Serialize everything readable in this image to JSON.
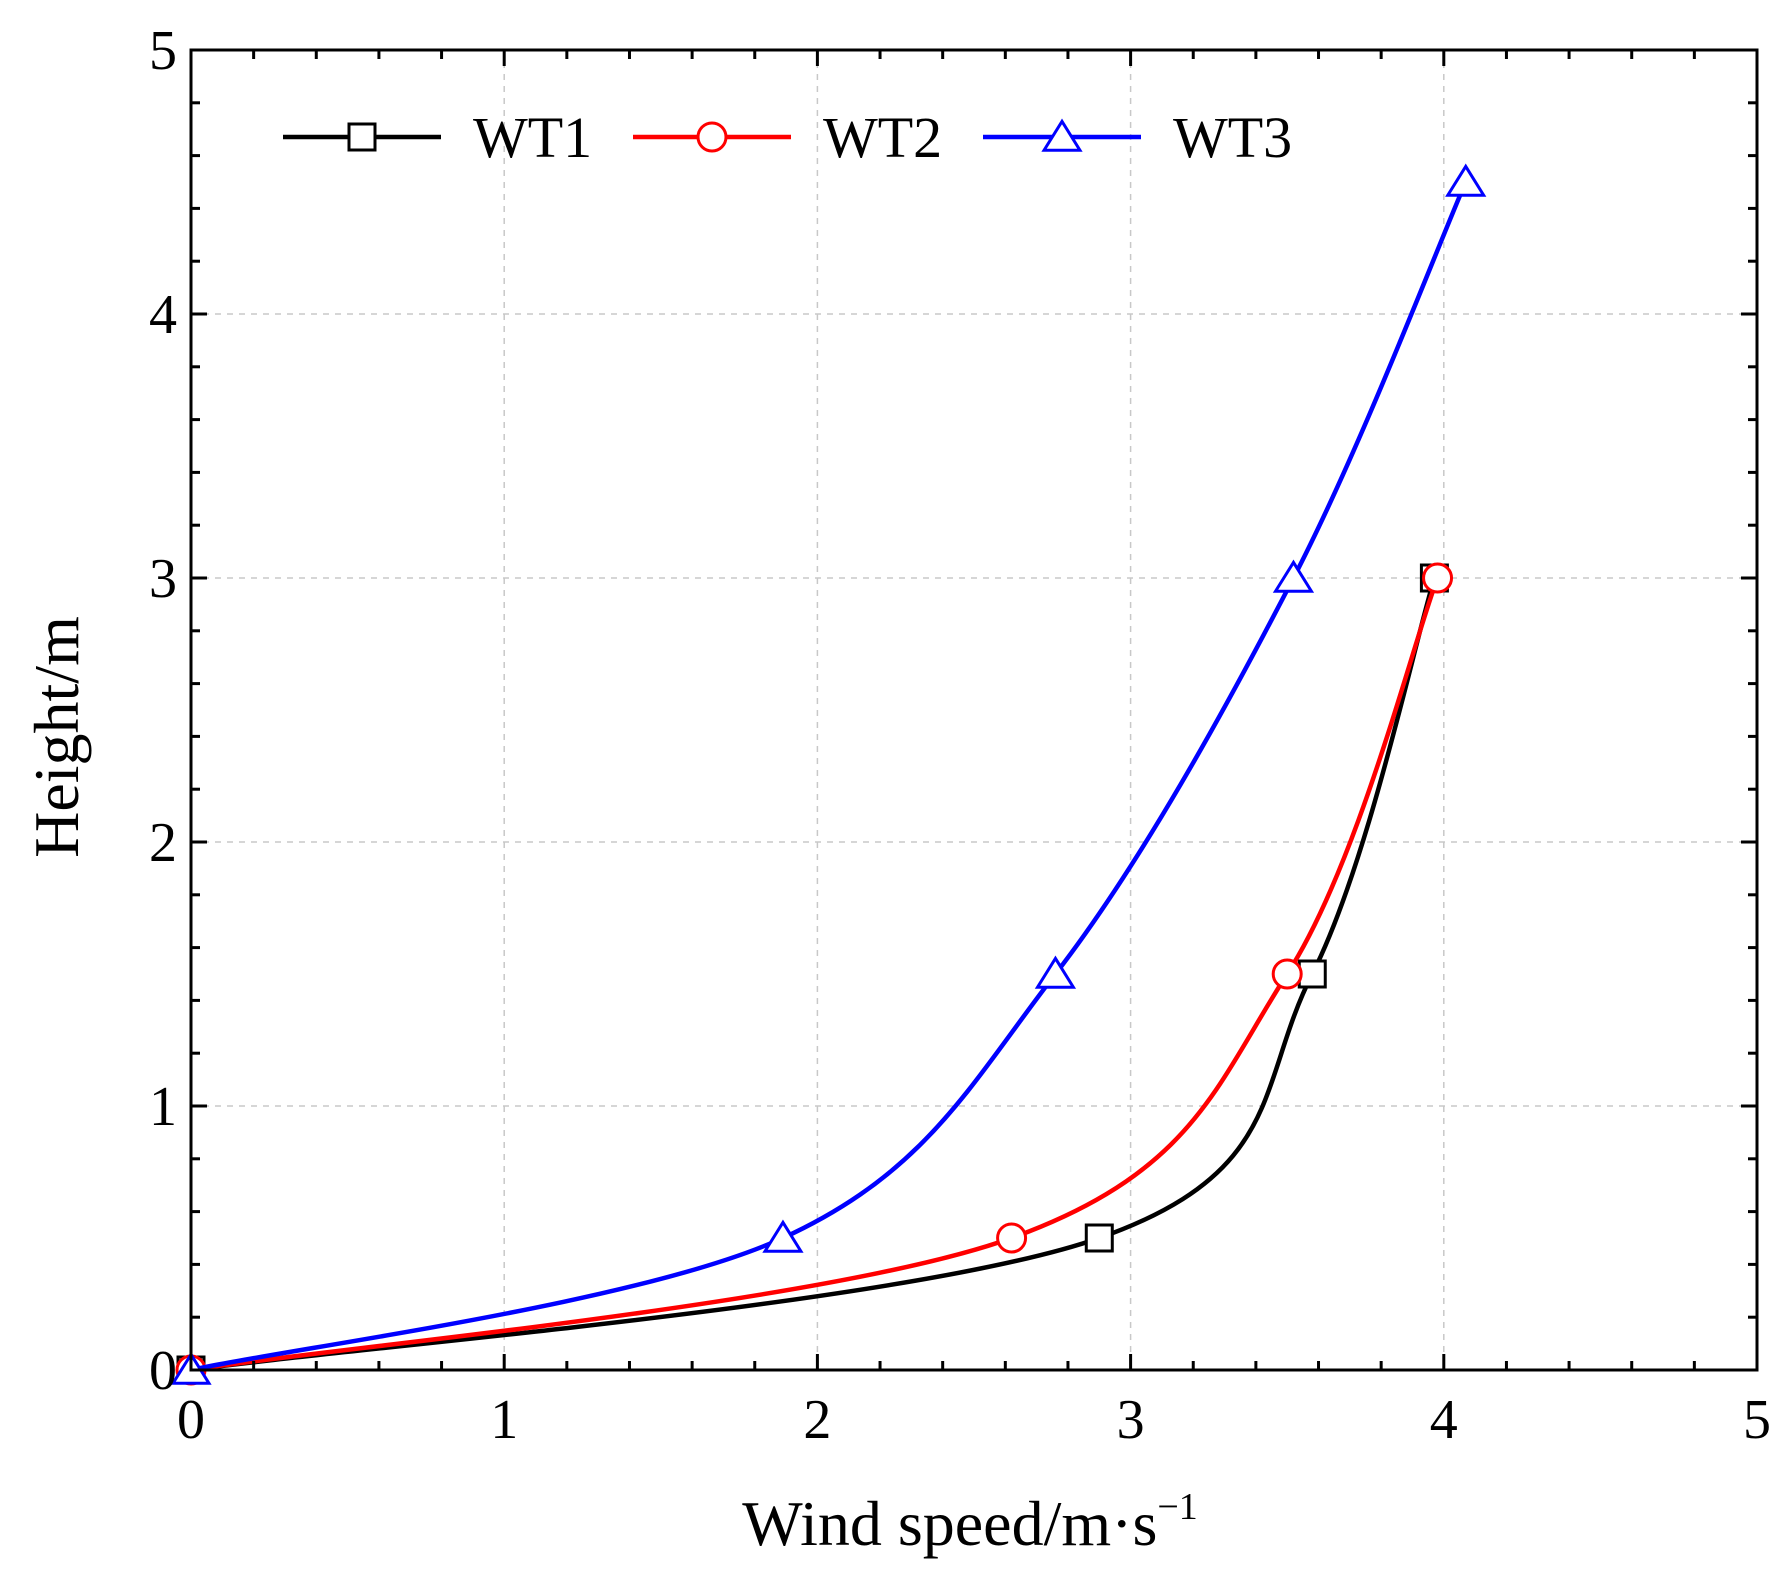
{
  "chart_data": {
    "type": "line",
    "title": "",
    "xlabel": "Wind speed/m·s",
    "xlabel_superscript": "−1",
    "ylabel": "Height/m",
    "xlim": [
      0,
      5
    ],
    "ylim": [
      0,
      5
    ],
    "xticks": [
      0,
      1,
      2,
      3,
      4,
      5
    ],
    "yticks": [
      0,
      1,
      2,
      3,
      4,
      5
    ],
    "xtick_labels": [
      "0",
      "1",
      "2",
      "3",
      "4",
      "5"
    ],
    "ytick_labels": [
      "0",
      "1",
      "2",
      "3",
      "4",
      "5"
    ],
    "minor_x_step": 0.2,
    "minor_y_step": 0.2,
    "grid": true,
    "legend_position": "top-left",
    "series": [
      {
        "name": "WT1",
        "color": "#000000",
        "marker": "square",
        "points": [
          [
            0,
            0
          ],
          [
            2.9,
            0.5
          ],
          [
            3.58,
            1.5
          ],
          [
            3.97,
            3.0
          ]
        ]
      },
      {
        "name": "WT2",
        "color": "#ff0000",
        "marker": "circle",
        "points": [
          [
            0,
            0
          ],
          [
            2.62,
            0.5
          ],
          [
            3.5,
            1.5
          ],
          [
            3.98,
            3.0
          ]
        ]
      },
      {
        "name": "WT3",
        "color": "#0000ff",
        "marker": "triangle",
        "points": [
          [
            0,
            0
          ],
          [
            1.89,
            0.5
          ],
          [
            2.76,
            1.5
          ],
          [
            3.52,
            3.0
          ],
          [
            4.07,
            4.5
          ]
        ]
      }
    ]
  }
}
